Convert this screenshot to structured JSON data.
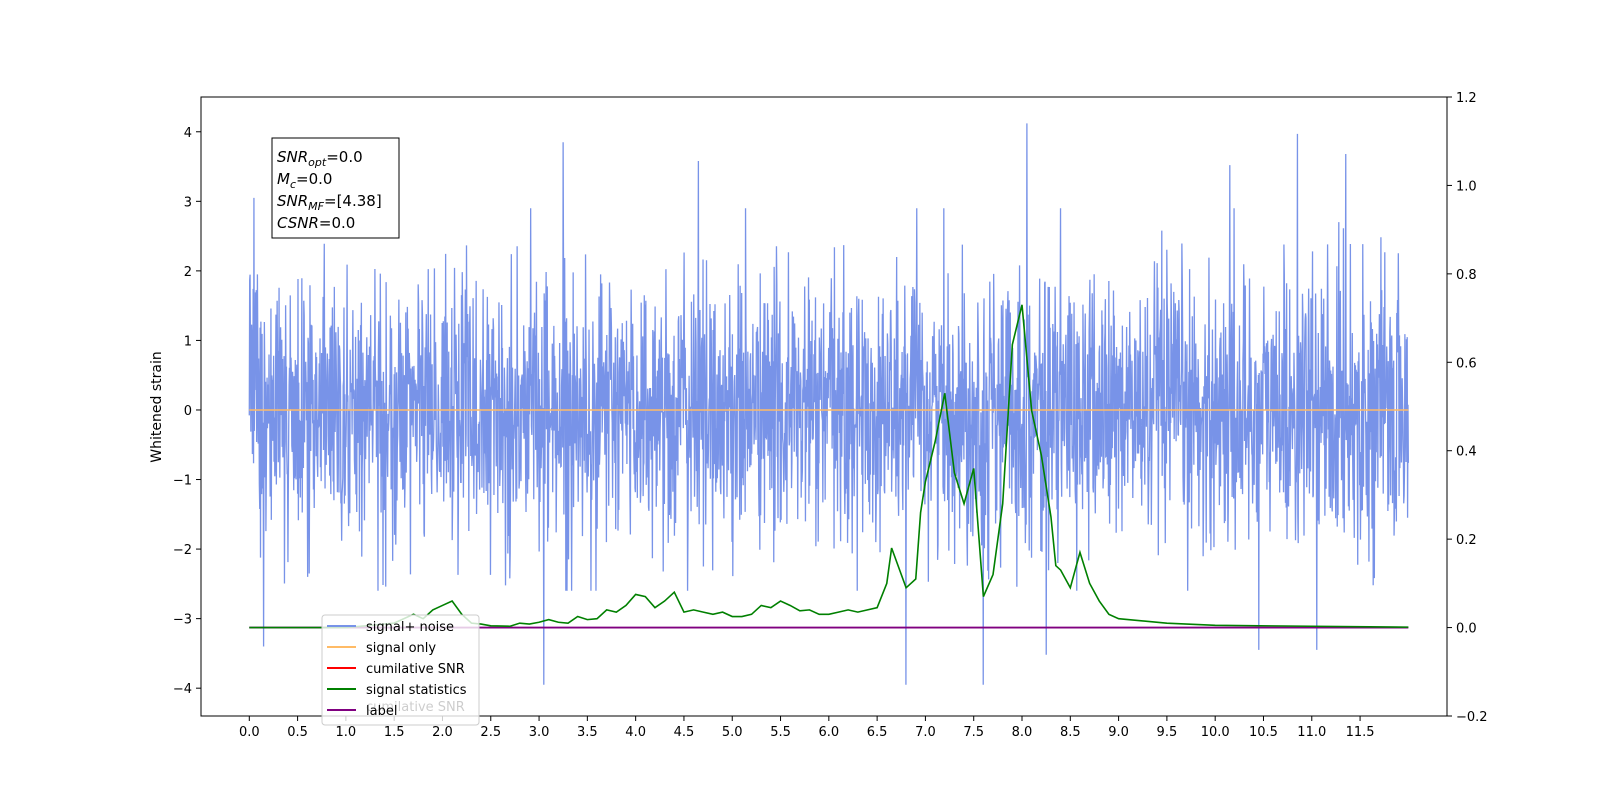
{
  "chart_data": {
    "type": "line",
    "xlabel": "",
    "ylabel": "Whitened strain",
    "xlim": [
      -0.5,
      12.4
    ],
    "ylim": [
      -4.4,
      4.5
    ],
    "y2lim": [
      -0.2,
      1.2
    ],
    "x_ticks": [
      "0.0",
      "0.5",
      "1.0",
      "1.5",
      "2.0",
      "2.5",
      "3.0",
      "3.5",
      "4.0",
      "4.5",
      "5.0",
      "5.5",
      "6.0",
      "6.5",
      "7.0",
      "7.5",
      "8.0",
      "8.5",
      "9.0",
      "9.5",
      "10.0",
      "10.5",
      "11.0",
      "11.5"
    ],
    "y_ticks": [
      "-4",
      "-3",
      "-2",
      "-1",
      "0",
      "1",
      "2",
      "3",
      "4"
    ],
    "y2_ticks": [
      "-0.2",
      "0.0",
      "0.2",
      "0.4",
      "0.6",
      "0.8",
      "1.0",
      "1.2"
    ],
    "info_box": [
      {
        "base": "SNR",
        "sub": "opt",
        "value": "=0.0"
      },
      {
        "base": "M",
        "sub": "c",
        "value": "=0.0"
      },
      {
        "base": "SNR",
        "sub": "MF",
        "value": "=[4.38]"
      },
      {
        "base": "CSNR",
        "sub": "",
        "value": "=0.0"
      }
    ],
    "series": [
      {
        "name": "signal+ noise",
        "color": "#7893e8",
        "axis": "left",
        "kind": "noise",
        "x_range": [
          0.0,
          12.0
        ],
        "typical_envelope": [
          -2.2,
          2.5
        ],
        "notable_peaks": [
          [
            0.05,
            3.05
          ],
          [
            3.25,
            3.85
          ],
          [
            4.65,
            3.58
          ],
          [
            8.05,
            4.12
          ],
          [
            10.85,
            3.97
          ],
          [
            11.35,
            3.68
          ],
          [
            10.15,
            3.52
          ],
          [
            0.15,
            -3.4
          ],
          [
            3.05,
            -3.95
          ],
          [
            6.8,
            -3.95
          ],
          [
            7.6,
            -3.95
          ],
          [
            8.25,
            -3.52
          ],
          [
            10.45,
            -3.45
          ],
          [
            11.05,
            -3.45
          ]
        ]
      },
      {
        "name": "signal only",
        "color": "#ffbb66",
        "axis": "left",
        "x": [
          0.0,
          12.0
        ],
        "y": [
          0.0,
          0.0
        ]
      },
      {
        "name": "cumilative SNR",
        "color": "#ff0000",
        "axis": "right",
        "x": [],
        "y": []
      },
      {
        "name": "signal statistics",
        "color": "#008000",
        "axis": "right",
        "x": [
          0.0,
          0.5,
          1.0,
          1.25,
          1.5,
          1.7,
          1.8,
          1.9,
          2.0,
          2.1,
          2.2,
          2.3,
          2.4,
          2.5,
          2.7,
          2.8,
          2.9,
          3.0,
          3.1,
          3.2,
          3.3,
          3.4,
          3.5,
          3.6,
          3.7,
          3.8,
          3.9,
          4.0,
          4.1,
          4.2,
          4.3,
          4.4,
          4.5,
          4.6,
          4.7,
          4.8,
          4.9,
          5.0,
          5.1,
          5.2,
          5.3,
          5.4,
          5.5,
          5.6,
          5.7,
          5.8,
          5.9,
          6.0,
          6.1,
          6.2,
          6.3,
          6.4,
          6.5,
          6.6,
          6.65,
          6.7,
          6.8,
          6.9,
          6.95,
          7.0,
          7.1,
          7.2,
          7.3,
          7.4,
          7.5,
          7.6,
          7.7,
          7.8,
          7.9,
          8.0,
          8.1,
          8.2,
          8.3,
          8.35,
          8.4,
          8.5,
          8.6,
          8.7,
          8.8,
          8.9,
          9.0,
          9.5,
          10.0,
          11.0,
          12.0
        ],
        "y": [
          0.0,
          0.0,
          0.0,
          0.005,
          0.01,
          0.03,
          0.02,
          0.04,
          0.05,
          0.06,
          0.03,
          0.01,
          0.008,
          0.004,
          0.003,
          0.01,
          0.008,
          0.012,
          0.018,
          0.012,
          0.01,
          0.025,
          0.018,
          0.02,
          0.04,
          0.035,
          0.05,
          0.075,
          0.07,
          0.045,
          0.06,
          0.08,
          0.035,
          0.04,
          0.035,
          0.03,
          0.035,
          0.025,
          0.025,
          0.03,
          0.05,
          0.045,
          0.06,
          0.05,
          0.038,
          0.04,
          0.03,
          0.03,
          0.035,
          0.04,
          0.035,
          0.04,
          0.045,
          0.1,
          0.18,
          0.15,
          0.09,
          0.11,
          0.26,
          0.33,
          0.42,
          0.53,
          0.35,
          0.28,
          0.36,
          0.07,
          0.12,
          0.28,
          0.64,
          0.73,
          0.49,
          0.39,
          0.25,
          0.14,
          0.13,
          0.09,
          0.17,
          0.1,
          0.06,
          0.03,
          0.02,
          0.01,
          0.005,
          0.003,
          0.001
        ]
      },
      {
        "name": "label",
        "color": "#800080",
        "axis": "right",
        "x": [
          0.0,
          12.0
        ],
        "y": [
          0.0,
          0.0
        ]
      }
    ],
    "legend_placement": "lower-left",
    "legend_hidden_text": "cumilative SNR"
  }
}
